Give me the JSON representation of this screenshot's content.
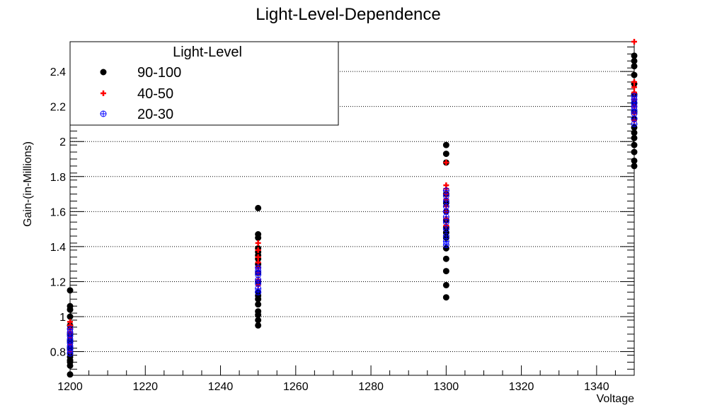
{
  "chart_data": {
    "type": "scatter",
    "title": "Light-Level-Dependence",
    "xlabel": "Voltage",
    "ylabel": "Gain-(in-Millions)",
    "xlim": [
      1200,
      1350
    ],
    "ylim": [
      0.665,
      2.57
    ],
    "xticks": [
      1200,
      1220,
      1240,
      1260,
      1280,
      1300,
      1320,
      1340
    ],
    "yticks": [
      0.8,
      1,
      1.2,
      1.4,
      1.6,
      1.8,
      2,
      2.2,
      2.4
    ],
    "ytick_labels": [
      "0.8",
      "1",
      "1.2",
      "1.4",
      "1.6",
      "1.8",
      "2",
      "2.2",
      "2.4"
    ],
    "grid": "horizontal-dotted",
    "legend": {
      "title": "Light-Level",
      "placement": "top-left"
    },
    "series": [
      {
        "name": "90-100",
        "marker": "filled-circle",
        "color": "#000000",
        "points": [
          {
            "x": 1200,
            "y": 0.67
          },
          {
            "x": 1200,
            "y": 0.72
          },
          {
            "x": 1200,
            "y": 0.74
          },
          {
            "x": 1200,
            "y": 0.75
          },
          {
            "x": 1200,
            "y": 0.77
          },
          {
            "x": 1200,
            "y": 0.79
          },
          {
            "x": 1200,
            "y": 0.82
          },
          {
            "x": 1200,
            "y": 0.86
          },
          {
            "x": 1200,
            "y": 0.9
          },
          {
            "x": 1200,
            "y": 0.95
          },
          {
            "x": 1200,
            "y": 1.0
          },
          {
            "x": 1200,
            "y": 1.04
          },
          {
            "x": 1200,
            "y": 1.06
          },
          {
            "x": 1200,
            "y": 1.15
          },
          {
            "x": 1250,
            "y": 0.95
          },
          {
            "x": 1250,
            "y": 0.98
          },
          {
            "x": 1250,
            "y": 1.01
          },
          {
            "x": 1250,
            "y": 1.03
          },
          {
            "x": 1250,
            "y": 1.07
          },
          {
            "x": 1250,
            "y": 1.1
          },
          {
            "x": 1250,
            "y": 1.12
          },
          {
            "x": 1250,
            "y": 1.14
          },
          {
            "x": 1250,
            "y": 1.2
          },
          {
            "x": 1250,
            "y": 1.25
          },
          {
            "x": 1250,
            "y": 1.3
          },
          {
            "x": 1250,
            "y": 1.33
          },
          {
            "x": 1250,
            "y": 1.35
          },
          {
            "x": 1250,
            "y": 1.37
          },
          {
            "x": 1250,
            "y": 1.39
          },
          {
            "x": 1250,
            "y": 1.45
          },
          {
            "x": 1250,
            "y": 1.47
          },
          {
            "x": 1250,
            "y": 1.62
          },
          {
            "x": 1300,
            "y": 1.11
          },
          {
            "x": 1300,
            "y": 1.18
          },
          {
            "x": 1300,
            "y": 1.26
          },
          {
            "x": 1300,
            "y": 1.33
          },
          {
            "x": 1300,
            "y": 1.39
          },
          {
            "x": 1300,
            "y": 1.45
          },
          {
            "x": 1300,
            "y": 1.48
          },
          {
            "x": 1300,
            "y": 1.51
          },
          {
            "x": 1300,
            "y": 1.55
          },
          {
            "x": 1300,
            "y": 1.6
          },
          {
            "x": 1300,
            "y": 1.65
          },
          {
            "x": 1300,
            "y": 1.7
          },
          {
            "x": 1300,
            "y": 1.88
          },
          {
            "x": 1300,
            "y": 1.93
          },
          {
            "x": 1300,
            "y": 1.98
          },
          {
            "x": 1350,
            "y": 1.86
          },
          {
            "x": 1350,
            "y": 1.89
          },
          {
            "x": 1350,
            "y": 1.94
          },
          {
            "x": 1350,
            "y": 1.98
          },
          {
            "x": 1350,
            "y": 2.02
          },
          {
            "x": 1350,
            "y": 2.05
          },
          {
            "x": 1350,
            "y": 2.08
          },
          {
            "x": 1350,
            "y": 2.13
          },
          {
            "x": 1350,
            "y": 2.17
          },
          {
            "x": 1350,
            "y": 2.22
          },
          {
            "x": 1350,
            "y": 2.27
          },
          {
            "x": 1350,
            "y": 2.33
          },
          {
            "x": 1350,
            "y": 2.38
          },
          {
            "x": 1350,
            "y": 2.43
          },
          {
            "x": 1350,
            "y": 2.46
          },
          {
            "x": 1350,
            "y": 2.49
          }
        ]
      },
      {
        "name": "40-50",
        "marker": "plus",
        "color": "#ff0000",
        "points": [
          {
            "x": 1200,
            "y": 0.8
          },
          {
            "x": 1200,
            "y": 0.84
          },
          {
            "x": 1200,
            "y": 0.88
          },
          {
            "x": 1200,
            "y": 0.91
          },
          {
            "x": 1200,
            "y": 0.93
          },
          {
            "x": 1200,
            "y": 0.95
          },
          {
            "x": 1200,
            "y": 0.97
          },
          {
            "x": 1250,
            "y": 1.18
          },
          {
            "x": 1250,
            "y": 1.21
          },
          {
            "x": 1250,
            "y": 1.25
          },
          {
            "x": 1250,
            "y": 1.28
          },
          {
            "x": 1250,
            "y": 1.31
          },
          {
            "x": 1250,
            "y": 1.34
          },
          {
            "x": 1250,
            "y": 1.38
          },
          {
            "x": 1250,
            "y": 1.42
          },
          {
            "x": 1300,
            "y": 1.52
          },
          {
            "x": 1300,
            "y": 1.56
          },
          {
            "x": 1300,
            "y": 1.6
          },
          {
            "x": 1300,
            "y": 1.63
          },
          {
            "x": 1300,
            "y": 1.67
          },
          {
            "x": 1300,
            "y": 1.7
          },
          {
            "x": 1300,
            "y": 1.73
          },
          {
            "x": 1300,
            "y": 1.75
          },
          {
            "x": 1300,
            "y": 1.88
          },
          {
            "x": 1350,
            "y": 2.12
          },
          {
            "x": 1350,
            "y": 2.16
          },
          {
            "x": 1350,
            "y": 2.2
          },
          {
            "x": 1350,
            "y": 2.24
          },
          {
            "x": 1350,
            "y": 2.28
          },
          {
            "x": 1350,
            "y": 2.31
          },
          {
            "x": 1350,
            "y": 2.34
          },
          {
            "x": 1350,
            "y": 2.57
          }
        ]
      },
      {
        "name": "20-30",
        "marker": "circle-plus",
        "color": "#0000ff",
        "points": [
          {
            "x": 1200,
            "y": 0.79
          },
          {
            "x": 1200,
            "y": 0.81
          },
          {
            "x": 1200,
            "y": 0.83
          },
          {
            "x": 1200,
            "y": 0.85
          },
          {
            "x": 1200,
            "y": 0.87
          },
          {
            "x": 1200,
            "y": 0.89
          },
          {
            "x": 1200,
            "y": 0.91
          },
          {
            "x": 1200,
            "y": 0.93
          },
          {
            "x": 1250,
            "y": 1.14
          },
          {
            "x": 1250,
            "y": 1.16
          },
          {
            "x": 1250,
            "y": 1.19
          },
          {
            "x": 1250,
            "y": 1.21
          },
          {
            "x": 1250,
            "y": 1.24
          },
          {
            "x": 1250,
            "y": 1.26
          },
          {
            "x": 1250,
            "y": 1.28
          },
          {
            "x": 1300,
            "y": 1.41
          },
          {
            "x": 1300,
            "y": 1.43
          },
          {
            "x": 1300,
            "y": 1.46
          },
          {
            "x": 1300,
            "y": 1.5
          },
          {
            "x": 1300,
            "y": 1.54
          },
          {
            "x": 1300,
            "y": 1.57
          },
          {
            "x": 1300,
            "y": 1.6
          },
          {
            "x": 1300,
            "y": 1.63
          },
          {
            "x": 1300,
            "y": 1.66
          },
          {
            "x": 1300,
            "y": 1.69
          },
          {
            "x": 1300,
            "y": 1.72
          },
          {
            "x": 1350,
            "y": 2.1
          },
          {
            "x": 1350,
            "y": 2.13
          },
          {
            "x": 1350,
            "y": 2.16
          },
          {
            "x": 1350,
            "y": 2.18
          },
          {
            "x": 1350,
            "y": 2.2
          },
          {
            "x": 1350,
            "y": 2.22
          },
          {
            "x": 1350,
            "y": 2.24
          },
          {
            "x": 1350,
            "y": 2.26
          }
        ]
      }
    ]
  }
}
